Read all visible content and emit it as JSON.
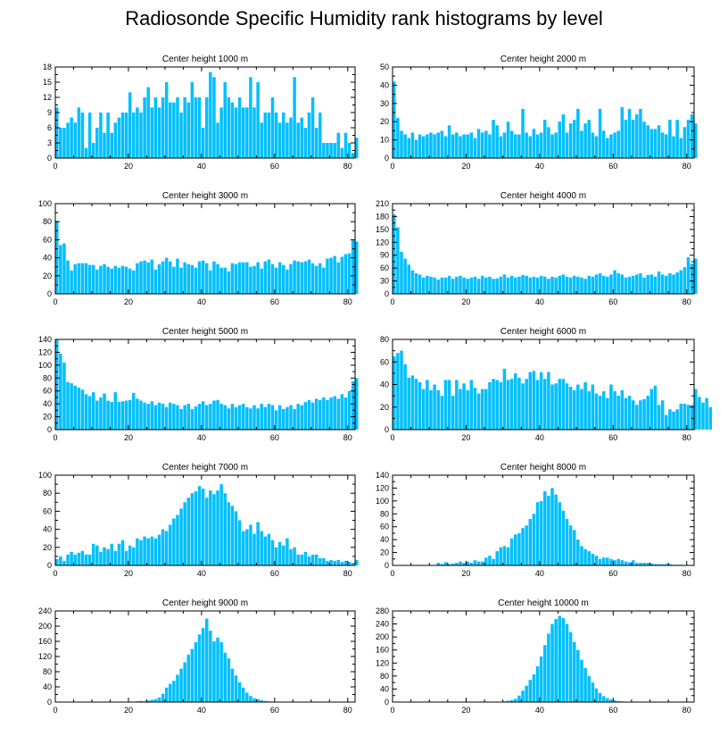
{
  "title": "Radiosonde Specific Humidity rank histograms by level",
  "bar_color": "#00bfff",
  "chart_data": [
    {
      "type": "bar",
      "title": "Center height 1000 m",
      "xlim": [
        0,
        82
      ],
      "ylim": [
        0,
        18
      ],
      "yticks": [
        0,
        3,
        6,
        9,
        12,
        15,
        18
      ],
      "xticks": [
        0,
        20,
        40,
        60,
        80
      ],
      "values": [
        10,
        6,
        6,
        7,
        8,
        7,
        10,
        9,
        2,
        9,
        3,
        6,
        9,
        5,
        9,
        5,
        7,
        8,
        9,
        9,
        13,
        9,
        10,
        9,
        12,
        14,
        10,
        12,
        10,
        12,
        15,
        11,
        11,
        12,
        9,
        12,
        11,
        15,
        12,
        12,
        6,
        12,
        17,
        16,
        7,
        10,
        15,
        12,
        11,
        10,
        12,
        10,
        10,
        16,
        10,
        15,
        7,
        9,
        9,
        12,
        9,
        7,
        9,
        7,
        8,
        16,
        7,
        8,
        6,
        9,
        12,
        6,
        9,
        3,
        3,
        3,
        3,
        5,
        2,
        5,
        3,
        1,
        4
      ]
    },
    {
      "type": "bar",
      "title": "Center height 2000 m",
      "xlim": [
        0,
        82
      ],
      "ylim": [
        0,
        50
      ],
      "yticks": [
        0,
        10,
        20,
        30,
        40,
        50
      ],
      "xticks": [
        0,
        20,
        40,
        60,
        80
      ],
      "values": [
        42,
        22,
        15,
        13,
        11,
        14,
        10,
        13,
        12,
        13,
        14,
        13,
        14,
        15,
        12,
        18,
        13,
        14,
        12,
        13,
        13,
        14,
        11,
        16,
        14,
        15,
        13,
        21,
        18,
        12,
        14,
        20,
        15,
        13,
        13,
        27,
        14,
        12,
        16,
        13,
        14,
        21,
        17,
        13,
        14,
        20,
        24,
        14,
        19,
        21,
        27,
        15,
        19,
        21,
        14,
        12,
        27,
        15,
        11,
        13,
        14,
        15,
        28,
        21,
        27,
        21,
        24,
        27,
        20,
        18,
        16,
        16,
        18,
        14,
        13,
        21,
        12,
        21,
        11,
        17,
        21,
        24,
        19
      ]
    },
    {
      "type": "bar",
      "title": "Center height 3000 m",
      "xlim": [
        0,
        82
      ],
      "ylim": [
        0,
        100
      ],
      "yticks": [
        0,
        20,
        40,
        60,
        80,
        100
      ],
      "xticks": [
        0,
        20,
        40,
        60,
        80
      ],
      "values": [
        81,
        54,
        56,
        37,
        26,
        33,
        34,
        34,
        34,
        32,
        32,
        27,
        31,
        33,
        30,
        28,
        31,
        29,
        31,
        30,
        28,
        26,
        34,
        36,
        37,
        35,
        38,
        27,
        33,
        36,
        40,
        36,
        30,
        39,
        29,
        35,
        33,
        32,
        29,
        36,
        37,
        34,
        26,
        36,
        33,
        29,
        29,
        25,
        34,
        33,
        35,
        35,
        35,
        30,
        31,
        35,
        28,
        36,
        38,
        33,
        29,
        35,
        32,
        27,
        33,
        37,
        36,
        35,
        36,
        38,
        34,
        31,
        34,
        29,
        39,
        40,
        42,
        35,
        41,
        44,
        45,
        60,
        58
      ]
    },
    {
      "type": "bar",
      "title": "Center height 4000 m",
      "xlim": [
        0,
        82
      ],
      "ylim": [
        0,
        210
      ],
      "yticks": [
        0,
        30,
        60,
        90,
        120,
        150,
        180,
        210
      ],
      "xticks": [
        0,
        20,
        40,
        60,
        80
      ],
      "values": [
        185,
        155,
        98,
        82,
        68,
        55,
        48,
        45,
        38,
        42,
        40,
        38,
        33,
        38,
        38,
        42,
        35,
        40,
        42,
        38,
        35,
        38,
        40,
        35,
        42,
        38,
        40,
        35,
        36,
        40,
        45,
        38,
        42,
        38,
        40,
        44,
        42,
        38,
        40,
        38,
        42,
        40,
        35,
        40,
        38,
        42,
        45,
        40,
        38,
        42,
        40,
        38,
        35,
        42,
        40,
        45,
        48,
        42,
        40,
        45,
        55,
        48,
        45,
        38,
        40,
        42,
        45,
        48,
        38,
        44,
        45,
        40,
        52,
        45,
        42,
        48,
        45,
        50,
        55,
        62,
        85,
        70,
        82
      ]
    },
    {
      "type": "bar",
      "title": "Center height 5000 m",
      "xlim": [
        0,
        82
      ],
      "ylim": [
        0,
        140
      ],
      "yticks": [
        0,
        20,
        40,
        60,
        80,
        100,
        120,
        140
      ],
      "xticks": [
        0,
        20,
        40,
        60,
        80
      ],
      "values": [
        140,
        118,
        104,
        74,
        72,
        68,
        65,
        62,
        55,
        52,
        58,
        45,
        50,
        56,
        45,
        43,
        58,
        43,
        44,
        45,
        46,
        57,
        48,
        45,
        42,
        40,
        44,
        38,
        42,
        40,
        35,
        42,
        40,
        38,
        32,
        38,
        40,
        32,
        36,
        40,
        44,
        38,
        40,
        45,
        46,
        40,
        38,
        33,
        40,
        35,
        38,
        40,
        35,
        33,
        38,
        33,
        40,
        35,
        40,
        38,
        30,
        38,
        32,
        35,
        38,
        32,
        40,
        38,
        43,
        46,
        42,
        48,
        46,
        50,
        46,
        50,
        52,
        48,
        55,
        50,
        60,
        75,
        80
      ]
    },
    {
      "type": "bar",
      "title": "Center height 6000 m",
      "xlim": [
        0,
        82
      ],
      "ylim": [
        0,
        80
      ],
      "yticks": [
        0,
        20,
        40,
        60,
        80
      ],
      "xticks": [
        0,
        20,
        40,
        60,
        80
      ],
      "values": [
        65,
        68,
        70,
        58,
        46,
        48,
        45,
        42,
        36,
        44,
        35,
        40,
        35,
        30,
        44,
        44,
        30,
        44,
        36,
        41,
        35,
        44,
        37,
        32,
        36,
        36,
        42,
        45,
        44,
        42,
        54,
        44,
        45,
        50,
        46,
        41,
        45,
        51,
        52,
        44,
        51,
        45,
        51,
        40,
        41,
        45,
        45,
        41,
        38,
        35,
        40,
        36,
        42,
        34,
        40,
        32,
        30,
        34,
        28,
        40,
        34,
        30,
        35,
        28,
        30,
        26,
        22,
        26,
        27,
        30,
        36,
        39,
        22,
        26,
        13,
        18,
        16,
        18,
        23,
        23,
        22,
        22,
        36,
        29,
        24,
        28,
        20
      ]
    },
    {
      "type": "bar",
      "title": "Center height 7000 m",
      "xlim": [
        0,
        82
      ],
      "ylim": [
        0,
        100
      ],
      "yticks": [
        0,
        20,
        40,
        60,
        80,
        100
      ],
      "xticks": [
        0,
        20,
        40,
        60,
        80
      ],
      "values": [
        7,
        10,
        5,
        12,
        15,
        12,
        14,
        16,
        12,
        12,
        24,
        22,
        15,
        20,
        18,
        24,
        16,
        24,
        28,
        16,
        22,
        20,
        30,
        28,
        32,
        30,
        32,
        30,
        34,
        40,
        38,
        45,
        52,
        56,
        63,
        70,
        75,
        80,
        82,
        88,
        85,
        75,
        83,
        79,
        83,
        90,
        80,
        70,
        66,
        60,
        50,
        38,
        40,
        45,
        35,
        48,
        38,
        32,
        35,
        28,
        20,
        26,
        22,
        30,
        18,
        20,
        12,
        12,
        15,
        10,
        12,
        12,
        8,
        8,
        5,
        6,
        5,
        6,
        4,
        5,
        4,
        3,
        6
      ]
    },
    {
      "type": "bar",
      "title": "Center height 8000 m",
      "xlim": [
        0,
        82
      ],
      "ylim": [
        0,
        140
      ],
      "yticks": [
        0,
        20,
        40,
        60,
        80,
        100,
        120,
        140
      ],
      "xticks": [
        0,
        20,
        40,
        60,
        80
      ],
      "values": [
        0,
        0,
        0,
        0,
        0,
        0,
        0,
        0,
        0,
        0,
        0,
        0,
        4,
        2,
        5,
        2,
        3,
        4,
        6,
        4,
        6,
        4,
        8,
        6,
        6,
        12,
        15,
        10,
        22,
        28,
        30,
        28,
        42,
        48,
        50,
        58,
        62,
        72,
        80,
        98,
        100,
        115,
        108,
        120,
        110,
        98,
        85,
        72,
        62,
        55,
        40,
        30,
        25,
        22,
        18,
        15,
        10,
        12,
        12,
        10,
        8,
        10,
        8,
        6,
        5,
        8,
        4,
        4,
        4,
        4,
        3,
        2,
        2,
        2,
        2,
        2,
        1,
        1,
        1,
        0,
        0,
        0,
        0
      ]
    },
    {
      "type": "bar",
      "title": "Center height 9000 m",
      "xlim": [
        0,
        82
      ],
      "ylim": [
        0,
        240
      ],
      "yticks": [
        0,
        40,
        80,
        120,
        160,
        200,
        240
      ],
      "xticks": [
        0,
        20,
        40,
        60,
        80
      ],
      "values": [
        0,
        0,
        0,
        0,
        0,
        0,
        0,
        0,
        0,
        0,
        0,
        0,
        0,
        0,
        0,
        0,
        0,
        0,
        0,
        0,
        1,
        1,
        2,
        3,
        2,
        4,
        6,
        8,
        12,
        22,
        38,
        48,
        56,
        72,
        88,
        105,
        125,
        140,
        158,
        178,
        195,
        220,
        188,
        160,
        170,
        158,
        130,
        115,
        88,
        70,
        52,
        38,
        25,
        16,
        10,
        8,
        5,
        3,
        2,
        1,
        1,
        0,
        0,
        0,
        0,
        0,
        0,
        0,
        0,
        0,
        0,
        0,
        0,
        0,
        0,
        0,
        0,
        0,
        0,
        0,
        0,
        0,
        0
      ]
    },
    {
      "type": "bar",
      "title": "Center height 10000 m",
      "xlim": [
        0,
        82
      ],
      "ylim": [
        0,
        280
      ],
      "yticks": [
        0,
        40,
        80,
        120,
        160,
        200,
        240,
        280
      ],
      "xticks": [
        0,
        20,
        40,
        60,
        80
      ],
      "values": [
        0,
        0,
        0,
        0,
        0,
        0,
        0,
        0,
        0,
        0,
        0,
        0,
        0,
        0,
        0,
        0,
        0,
        0,
        0,
        0,
        0,
        0,
        0,
        0,
        0,
        0,
        0,
        0,
        1,
        1,
        2,
        4,
        6,
        10,
        20,
        35,
        50,
        68,
        85,
        110,
        140,
        175,
        210,
        240,
        255,
        265,
        258,
        240,
        215,
        185,
        160,
        130,
        105,
        80,
        60,
        42,
        28,
        18,
        12,
        8,
        5,
        3,
        2,
        1,
        1,
        0,
        0,
        0,
        0,
        0,
        0,
        0,
        0,
        0,
        0,
        0,
        0,
        0,
        0,
        0,
        0,
        0,
        0
      ]
    }
  ]
}
